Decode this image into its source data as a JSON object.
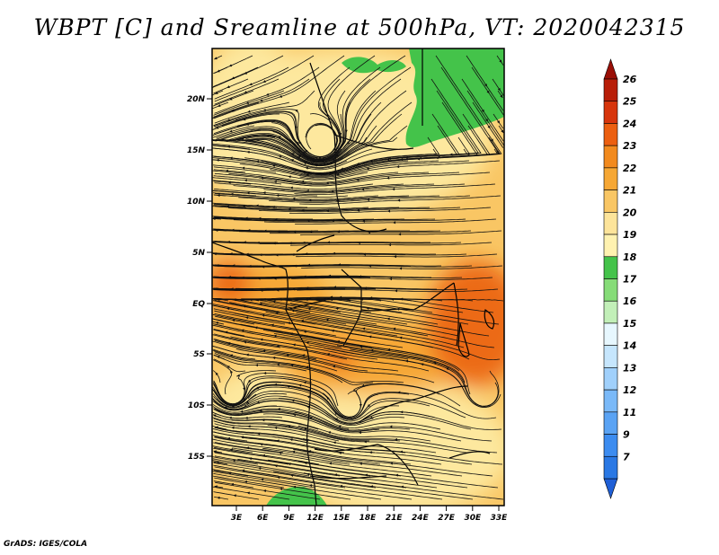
{
  "title": "WBPT [C] and Sreamline at 500hPa, VT: 2020042315",
  "credit": "GrADS: IGES/COLA",
  "map": {
    "lat_ticks": [
      "20N",
      "15N",
      "10N",
      "5N",
      "EQ",
      "5S",
      "10S",
      "15S"
    ],
    "lon_ticks": [
      "3E",
      "6E",
      "9E",
      "12E",
      "15E",
      "18E",
      "21E",
      "24E",
      "27E",
      "30E",
      "33E"
    ]
  },
  "colorbar": {
    "labels": [
      "7",
      "9",
      "11",
      "12",
      "13",
      "14",
      "15",
      "16",
      "17",
      "18",
      "19",
      "20",
      "21",
      "22",
      "23",
      "24",
      "25",
      "26"
    ],
    "colors": [
      "#1f5fd6",
      "#2a78e4",
      "#3c8cf0",
      "#5aa3f4",
      "#7ab9f8",
      "#a0d0fb",
      "#c6e6fd",
      "#e7f7fe",
      "#c2efb8",
      "#86dc78",
      "#44c34a",
      "#fff2b0",
      "#fde49a",
      "#f9c664",
      "#f6a734",
      "#f28a1e",
      "#ec5f10",
      "#d7350c",
      "#b81e08",
      "#9a0f06"
    ]
  },
  "colors": {
    "field_light": "#fde89e",
    "field_mid": "#f9c664",
    "field_warm": "#f6a734",
    "field_hot": "#ec6a14",
    "field_green": "#44c34a",
    "streamline": "#111111"
  }
}
